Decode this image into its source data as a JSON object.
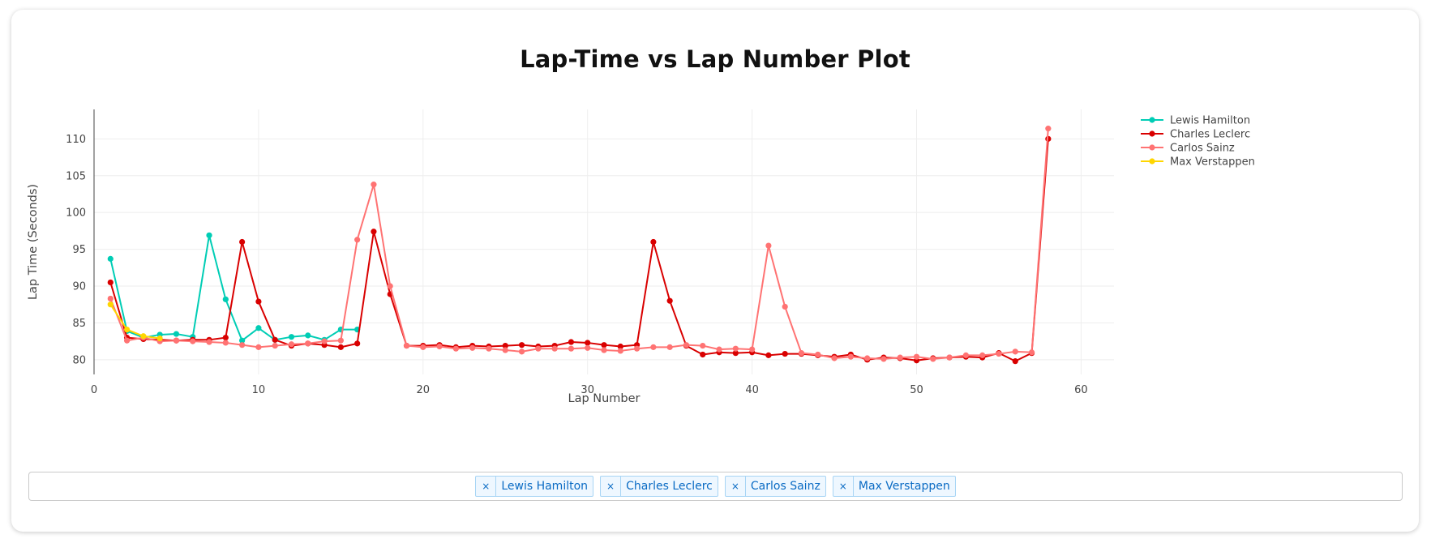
{
  "chart_data": {
    "type": "line",
    "title": "Lap-Time vs Lap Number Plot",
    "xlabel": "Lap Number",
    "ylabel": "Lap Time (Seconds)",
    "xlim": [
      0,
      62
    ],
    "ylim": [
      78,
      114
    ],
    "xticks": [
      0,
      10,
      20,
      30,
      40,
      50,
      60
    ],
    "yticks": [
      80,
      85,
      90,
      95,
      100,
      105,
      110
    ],
    "grid": true,
    "legend_position": "top-right",
    "series": [
      {
        "name": "Lewis Hamilton",
        "color": "#00cdb5",
        "x": [
          1,
          2,
          3,
          4,
          5,
          6,
          7,
          8,
          9,
          10,
          11,
          12,
          13,
          14,
          15,
          16
        ],
        "y": [
          93.7,
          83.9,
          83.0,
          83.4,
          83.5,
          83.1,
          96.9,
          88.2,
          82.6,
          84.3,
          82.7,
          83.1,
          83.3,
          82.7,
          84.1,
          84.1
        ]
      },
      {
        "name": "Charles Leclerc",
        "color": "#d90000",
        "x": [
          1,
          2,
          3,
          4,
          5,
          6,
          7,
          8,
          9,
          10,
          11,
          12,
          13,
          14,
          15,
          16,
          17,
          18,
          19,
          20,
          21,
          22,
          23,
          24,
          25,
          26,
          27,
          28,
          29,
          30,
          31,
          32,
          33,
          34,
          35,
          36,
          37,
          38,
          39,
          40,
          41,
          42,
          43,
          44,
          45,
          46,
          47,
          48,
          49,
          50,
          51,
          52,
          53,
          54,
          55,
          56,
          57,
          58
        ],
        "y": [
          90.5,
          83.0,
          82.8,
          82.7,
          82.6,
          82.7,
          82.7,
          83.0,
          96.0,
          87.9,
          82.7,
          81.9,
          82.2,
          82.0,
          81.7,
          82.2,
          97.4,
          88.9,
          81.9,
          81.9,
          82.0,
          81.7,
          81.9,
          81.8,
          81.9,
          82.0,
          81.8,
          81.9,
          82.4,
          82.3,
          82.0,
          81.8,
          82.0,
          96.0,
          88.0,
          81.9,
          80.7,
          81.0,
          80.9,
          81.0,
          80.6,
          80.8,
          80.8,
          80.6,
          80.4,
          80.7,
          80.0,
          80.3,
          80.2,
          79.9,
          80.2,
          80.3,
          80.4,
          80.3,
          80.9,
          79.8,
          80.9,
          110.0
        ]
      },
      {
        "name": "Carlos Sainz",
        "color": "#ff7373",
        "x": [
          1,
          2,
          3,
          4,
          5,
          6,
          7,
          8,
          9,
          10,
          11,
          12,
          13,
          14,
          15,
          16,
          17,
          18,
          19,
          20,
          21,
          22,
          23,
          24,
          25,
          26,
          27,
          28,
          29,
          30,
          31,
          32,
          33,
          34,
          35,
          36,
          37,
          38,
          39,
          40,
          41,
          42,
          43,
          44,
          45,
          46,
          47,
          48,
          49,
          50,
          51,
          52,
          53,
          54,
          55,
          56,
          57,
          58
        ],
        "y": [
          88.3,
          82.6,
          83.0,
          82.5,
          82.6,
          82.5,
          82.4,
          82.3,
          82.0,
          81.7,
          81.9,
          82.1,
          82.2,
          82.5,
          82.6,
          96.3,
          103.8,
          90.0,
          81.9,
          81.7,
          81.8,
          81.5,
          81.6,
          81.5,
          81.3,
          81.1,
          81.5,
          81.5,
          81.5,
          81.6,
          81.3,
          81.2,
          81.5,
          81.7,
          81.7,
          82.0,
          81.9,
          81.4,
          81.5,
          81.4,
          95.5,
          87.2,
          80.9,
          80.7,
          80.2,
          80.4,
          80.2,
          80.1,
          80.3,
          80.4,
          80.1,
          80.3,
          80.6,
          80.6,
          80.8,
          81.1,
          81.0,
          111.4
        ]
      },
      {
        "name": "Max Verstappen",
        "color": "#ffd600",
        "x": [
          1,
          2,
          3,
          4
        ],
        "y": [
          87.5,
          84.1,
          83.2,
          82.9
        ]
      }
    ]
  },
  "filters": {
    "chips": [
      "Lewis Hamilton",
      "Charles Leclerc",
      "Carlos Sainz",
      "Max Verstappen"
    ],
    "remove_symbol": "×"
  }
}
